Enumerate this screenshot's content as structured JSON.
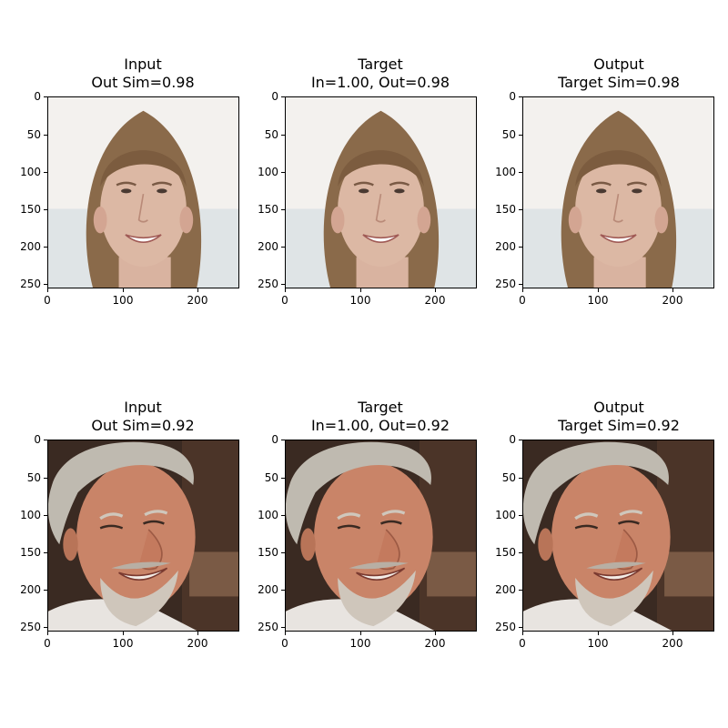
{
  "figure": {
    "y_ticks": [
      "0",
      "50",
      "100",
      "150",
      "200",
      "250"
    ],
    "x_ticks": [
      "0",
      "100",
      "200"
    ],
    "rows": [
      {
        "subject": "young-man-long-hair",
        "panels": [
          {
            "title_line1": "Input",
            "title_line2": "Out Sim=0.98"
          },
          {
            "title_line1": "Target",
            "title_line2": "In=1.00, Out=0.98"
          },
          {
            "title_line1": "Output",
            "title_line2": "Target Sim=0.98"
          }
        ]
      },
      {
        "subject": "older-man-gray-hair",
        "panels": [
          {
            "title_line1": "Input",
            "title_line2": "Out Sim=0.92"
          },
          {
            "title_line1": "Target",
            "title_line2": "In=1.00, Out=0.92"
          },
          {
            "title_line1": "Output",
            "title_line2": "Target Sim=0.92"
          }
        ]
      }
    ]
  }
}
